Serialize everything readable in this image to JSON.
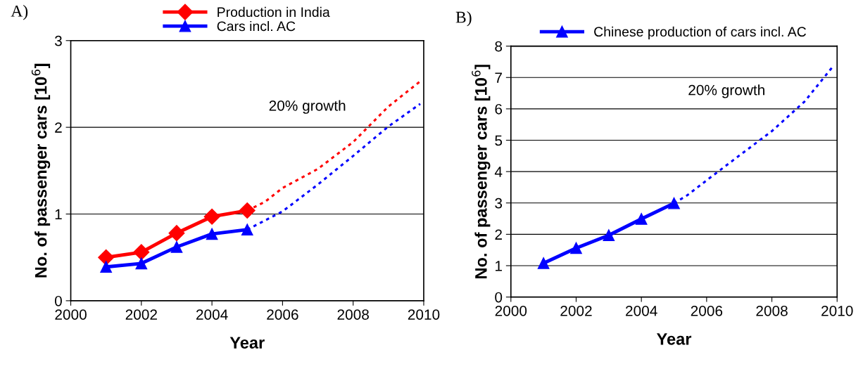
{
  "chart_data": [
    {
      "type": "line",
      "title": "A)",
      "xlabel": "Year",
      "ylabel": "No. of passenger cars [10$^{6}$]",
      "xlim": [
        2000,
        2010
      ],
      "xticks": [
        2000,
        2002,
        2004,
        2006,
        2008,
        2010
      ],
      "ylim": [
        0,
        3
      ],
      "yticks": [
        0,
        1,
        2,
        3
      ],
      "grid": "y",
      "legend": "top",
      "annotations": [
        "20% growth"
      ],
      "series": [
        {
          "name": "Production in India",
          "color": "#ff0000",
          "x": [
            2001,
            2002,
            2003,
            2004,
            2005
          ],
          "values": [
            0.5,
            0.56,
            0.78,
            0.97,
            1.04
          ],
          "marker": "diamond",
          "line_style": "solid"
        },
        {
          "name": "Cars incl. AC",
          "color": "#0000ff",
          "x": [
            2001,
            2002,
            2003,
            2004,
            2005
          ],
          "values": [
            0.39,
            0.43,
            0.62,
            0.77,
            0.82
          ],
          "marker": "triangle",
          "line_style": "solid"
        },
        {
          "color": "#ff0000",
          "x": [
            2005,
            2005.5,
            2006,
            2007,
            2008,
            2009,
            2009.9
          ],
          "values": [
            1.04,
            1.14,
            1.3,
            1.52,
            1.83,
            2.24,
            2.53
          ],
          "marker": "none",
          "line_style": "dotted"
        },
        {
          "color": "#0000ff",
          "x": [
            2005,
            2006,
            2007,
            2008,
            2009,
            2009.9
          ],
          "values": [
            0.82,
            1.03,
            1.34,
            1.67,
            2.01,
            2.27
          ],
          "marker": "none",
          "line_style": "dotted"
        }
      ]
    },
    {
      "type": "line",
      "title": "B)",
      "xlabel": "Year",
      "ylabel": "No. of passenger cars [10$^{6}$]",
      "xlim": [
        2000,
        2010
      ],
      "xticks": [
        2000,
        2002,
        2004,
        2006,
        2008,
        2010
      ],
      "ylim": [
        0,
        8
      ],
      "yticks": [
        0,
        1,
        2,
        3,
        4,
        5,
        6,
        7,
        8
      ],
      "grid": "y",
      "legend": "top",
      "annotations": [
        "20% growth"
      ],
      "series": [
        {
          "name": "Chinese production of cars incl. AC",
          "color": "#0000ff",
          "x": [
            2001,
            2002,
            2003,
            2004,
            2005
          ],
          "values": [
            1.08,
            1.56,
            1.97,
            2.49,
            2.99
          ],
          "marker": "triangle",
          "line_style": "solid"
        },
        {
          "color": "#0000ff",
          "x": [
            2005,
            2005.4,
            2006,
            2007,
            2008,
            2009,
            2009.9
          ],
          "values": [
            2.99,
            3.24,
            3.72,
            4.51,
            5.29,
            6.23,
            7.39
          ],
          "marker": "none",
          "line_style": "dotted"
        }
      ]
    }
  ]
}
